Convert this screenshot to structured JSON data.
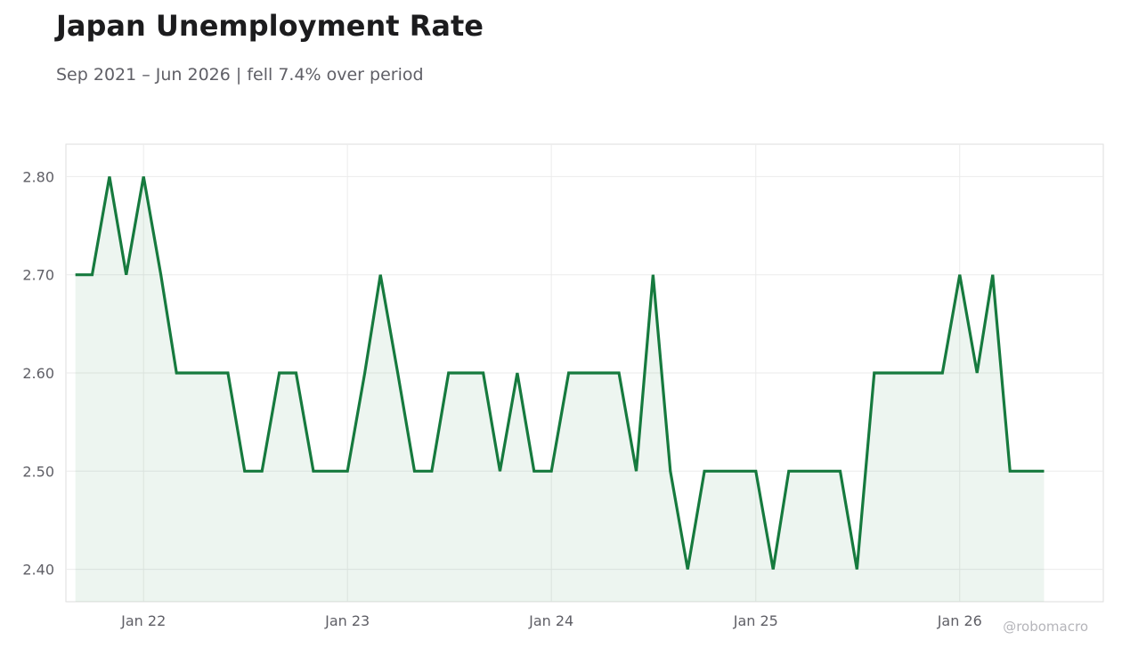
{
  "title": "Japan Unemployment Rate",
  "subtitle": "Sep 2021 – Jun 2026 | fell 7.4% over period",
  "watermark": "@robomacro",
  "colors": {
    "line": "#167a3e",
    "fill": "#167a3e",
    "grid": "#ebebeb",
    "frame": "#dedede",
    "tick_text": "#5f5f66"
  },
  "chart_data": {
    "type": "area",
    "x_start": "2021-09",
    "x_end": "2026-06",
    "xlim": [
      "2021-08-15",
      "2026-09-15"
    ],
    "x_ticks": [
      {
        "date": "2022-01",
        "label": "Jan 22"
      },
      {
        "date": "2023-01",
        "label": "Jan 23"
      },
      {
        "date": "2024-01",
        "label": "Jan 24"
      },
      {
        "date": "2025-01",
        "label": "Jan 25"
      },
      {
        "date": "2026-01",
        "label": "Jan 26"
      }
    ],
    "ylim": [
      2.367,
      2.833
    ],
    "y_ticks": [
      {
        "value": 2.4,
        "label": "2.40"
      },
      {
        "value": 2.5,
        "label": "2.50"
      },
      {
        "value": 2.6,
        "label": "2.60"
      },
      {
        "value": 2.7,
        "label": "2.70"
      },
      {
        "value": 2.8,
        "label": "2.80"
      }
    ],
    "grid": true,
    "series": [
      {
        "values": [
          2.7,
          2.7,
          2.8,
          2.7,
          2.8,
          2.7,
          2.6,
          2.6,
          2.6,
          2.6,
          2.5,
          2.5,
          2.6,
          2.6,
          2.5,
          2.5,
          2.5,
          2.6,
          2.7,
          2.6,
          2.5,
          2.5,
          2.6,
          2.6,
          2.6,
          2.5,
          2.6,
          2.5,
          2.5,
          2.6,
          2.6,
          2.6,
          2.6,
          2.5,
          2.7,
          2.5,
          2.4,
          2.5,
          2.5,
          2.5,
          2.5,
          2.4,
          2.5,
          2.5,
          2.5,
          2.5,
          2.4,
          2.6,
          2.6,
          2.6,
          2.6,
          2.6,
          2.7,
          2.6,
          2.7,
          2.5,
          2.5,
          2.5
        ]
      }
    ]
  }
}
